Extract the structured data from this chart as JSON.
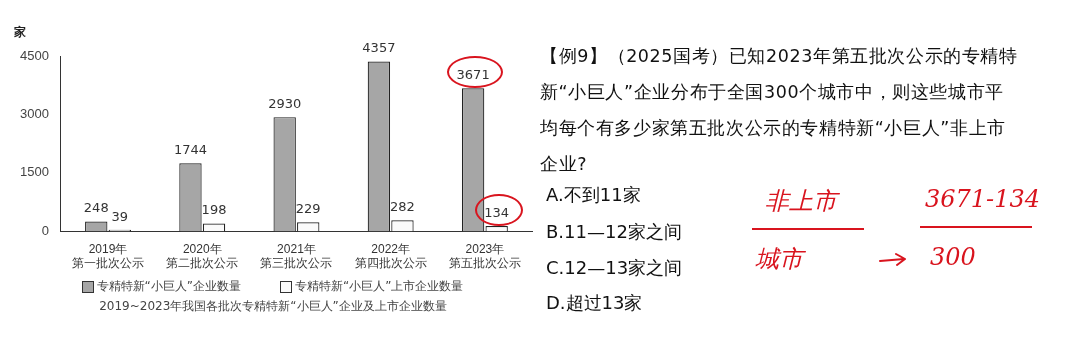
{
  "chart_data": {
    "type": "bar",
    "ylabel": "家",
    "categories": [
      "2019年第一批次公示",
      "2020年第二批次公示",
      "2021年第三批次公示",
      "2022年第四批次公示",
      "2023年第五批次公示"
    ],
    "series": [
      {
        "name": "专精特新“小巨人”企业数量",
        "color": "#a6a6a6",
        "values": [
          248,
          1744,
          2930,
          4357,
          3671
        ]
      },
      {
        "name": "专精特新“小巨人”上市企业数量",
        "color": "#fafafa",
        "values": [
          39,
          198,
          229,
          282,
          134
        ]
      }
    ],
    "ylim": [
      0,
      4500
    ],
    "yticks": [
      0,
      1500,
      3000,
      4500
    ],
    "grid": false,
    "legend": "bottom",
    "data_labels": true,
    "annotations": [
      "2019~2023年我国各批次专精特新“小巨人”企业及上市企业数量",
      "【例9】（2025国考）已知2023年第五批次公示的专精特新“小巨人”企业分布于全国300个城市中，则这些城市平均每个有多少家第五批次公示的专精特新“小巨人”非上市企业?",
      "A.不到11家",
      "B.11—12家之间",
      "C.12—13家之间",
      "D.超过13家",
      "非上市",
      "城市",
      "3671-134",
      "300"
    ]
  }
}
